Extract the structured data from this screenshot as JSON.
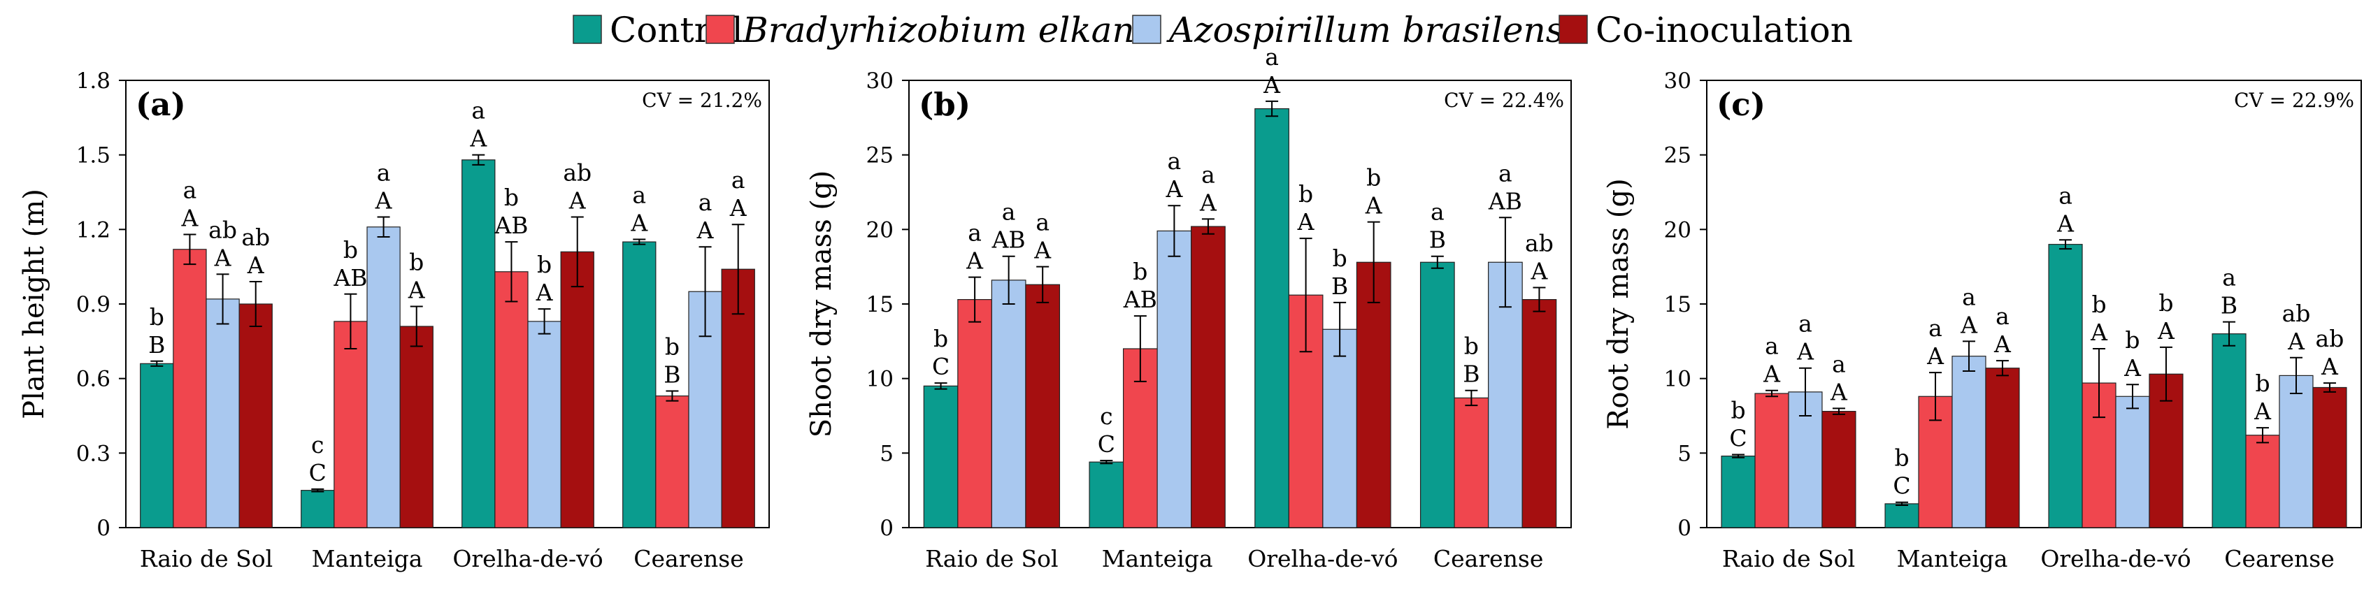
{
  "legend": [
    {
      "name": "Control",
      "color": "#0a9c8e",
      "italic": false
    },
    {
      "name": "Bradyrhizobium elkanii",
      "color": "#f0464e",
      "italic": true
    },
    {
      "name": "Azospirillum brasilense",
      "color": "#a9c8ef",
      "italic": true
    },
    {
      "name": "Co-inoculation",
      "color": "#a50f10",
      "italic": false
    }
  ],
  "chart_data": [
    {
      "type": "bar",
      "panel_label": "(a)",
      "cv": "CV = 21.2%",
      "ylabel": "Plant height (m)",
      "ylim": [
        0,
        1.8
      ],
      "yticks": [
        0,
        0.3,
        0.6,
        0.9,
        1.2,
        1.5,
        1.8
      ],
      "ytick_labels": [
        "0",
        "0.3",
        "0.6",
        "0.9",
        "1.2",
        "1.5",
        "1.8"
      ],
      "categories": [
        "Raio de Sol",
        "Manteiga",
        "Orelha-de-vó",
        "Cearense"
      ],
      "series": [
        {
          "name": "Control",
          "values": [
            0.66,
            0.15,
            1.48,
            1.15
          ],
          "errors": [
            0.01,
            0.005,
            0.02,
            0.01
          ],
          "lower": [
            "b",
            "c",
            "a",
            "a"
          ],
          "upper": [
            "B",
            "C",
            "A",
            "A"
          ]
        },
        {
          "name": "Bradyrhizobium elkanii",
          "values": [
            1.12,
            0.83,
            1.03,
            0.53
          ],
          "errors": [
            0.06,
            0.11,
            0.12,
            0.02
          ],
          "lower": [
            "a",
            "b",
            "b",
            "b"
          ],
          "upper": [
            "A",
            "AB",
            "AB",
            "B"
          ]
        },
        {
          "name": "Azospirillum brasilense",
          "values": [
            0.92,
            1.21,
            0.83,
            0.95
          ],
          "errors": [
            0.1,
            0.04,
            0.05,
            0.18
          ],
          "lower": [
            "ab",
            "a",
            "b",
            "a"
          ],
          "upper": [
            "A",
            "A",
            "A",
            "A"
          ]
        },
        {
          "name": "Co-inoculation",
          "values": [
            0.9,
            0.81,
            1.11,
            1.04
          ],
          "errors": [
            0.09,
            0.08,
            0.14,
            0.18
          ],
          "lower": [
            "ab",
            "b",
            "ab",
            "a"
          ],
          "upper": [
            "A",
            "A",
            "A",
            "A"
          ]
        }
      ]
    },
    {
      "type": "bar",
      "panel_label": "(b)",
      "cv": "CV = 22.4%",
      "ylabel": "Shoot dry mass (g)",
      "ylim": [
        0,
        30
      ],
      "yticks": [
        0,
        5,
        10,
        15,
        20,
        25,
        30
      ],
      "ytick_labels": [
        "0",
        "5",
        "10",
        "15",
        "20",
        "25",
        "30"
      ],
      "categories": [
        "Raio de Sol",
        "Manteiga",
        "Orelha-de-vó",
        "Cearense"
      ],
      "series": [
        {
          "name": "Control",
          "values": [
            9.5,
            4.4,
            28.1,
            17.8
          ],
          "errors": [
            0.2,
            0.1,
            0.5,
            0.4
          ],
          "lower": [
            "b",
            "c",
            "a",
            "a"
          ],
          "upper": [
            "C",
            "C",
            "A",
            "B"
          ]
        },
        {
          "name": "Bradyrhizobium elkanii",
          "values": [
            15.3,
            12.0,
            15.6,
            8.7
          ],
          "errors": [
            1.5,
            2.2,
            3.8,
            0.5
          ],
          "lower": [
            "a",
            "b",
            "b",
            "b"
          ],
          "upper": [
            "A",
            "AB",
            "A",
            "B"
          ]
        },
        {
          "name": "Azospirillum brasilense",
          "values": [
            16.6,
            19.9,
            13.3,
            17.8
          ],
          "errors": [
            1.6,
            1.7,
            1.8,
            3.0
          ],
          "lower": [
            "a",
            "a",
            "b",
            "a"
          ],
          "upper": [
            "AB",
            "A",
            "B",
            "AB"
          ]
        },
        {
          "name": "Co-inoculation",
          "values": [
            16.3,
            20.2,
            17.8,
            15.3
          ],
          "errors": [
            1.2,
            0.5,
            2.7,
            0.8
          ],
          "lower": [
            "a",
            "a",
            "b",
            "ab"
          ],
          "upper": [
            "A",
            "A",
            "A",
            "A"
          ]
        }
      ]
    },
    {
      "type": "bar",
      "panel_label": "(c)",
      "cv": "CV = 22.9%",
      "ylabel": "Root dry mass (g)",
      "ylim": [
        0,
        30
      ],
      "yticks": [
        0,
        5,
        10,
        15,
        20,
        25,
        30
      ],
      "ytick_labels": [
        "0",
        "5",
        "10",
        "15",
        "20",
        "25",
        "30"
      ],
      "categories": [
        "Raio de Sol",
        "Manteiga",
        "Orelha-de-vó",
        "Cearense"
      ],
      "series": [
        {
          "name": "Control",
          "values": [
            4.8,
            1.6,
            19.0,
            13.0
          ],
          "errors": [
            0.1,
            0.1,
            0.3,
            0.8
          ],
          "lower": [
            "b",
            "b",
            "a",
            "a"
          ],
          "upper": [
            "C",
            "C",
            "A",
            "B"
          ]
        },
        {
          "name": "Bradyrhizobium elkanii",
          "values": [
            9.0,
            8.8,
            9.7,
            6.2
          ],
          "errors": [
            0.2,
            1.6,
            2.3,
            0.5
          ],
          "lower": [
            "a",
            "a",
            "b",
            "b"
          ],
          "upper": [
            "A",
            "A",
            "A",
            "A"
          ]
        },
        {
          "name": "Azospirillum brasilense",
          "values": [
            9.1,
            11.5,
            8.8,
            10.2
          ],
          "errors": [
            1.6,
            1.0,
            0.8,
            1.2
          ],
          "lower": [
            "a",
            "a",
            "b",
            "ab"
          ],
          "upper": [
            "A",
            "A",
            "A",
            "A"
          ]
        },
        {
          "name": "Co-inoculation",
          "values": [
            7.8,
            10.7,
            10.3,
            9.4
          ],
          "errors": [
            0.2,
            0.5,
            1.8,
            0.3
          ],
          "lower": [
            "a",
            "a",
            "b",
            "ab"
          ],
          "upper": [
            "A",
            "A",
            "A",
            "A"
          ]
        }
      ]
    }
  ]
}
